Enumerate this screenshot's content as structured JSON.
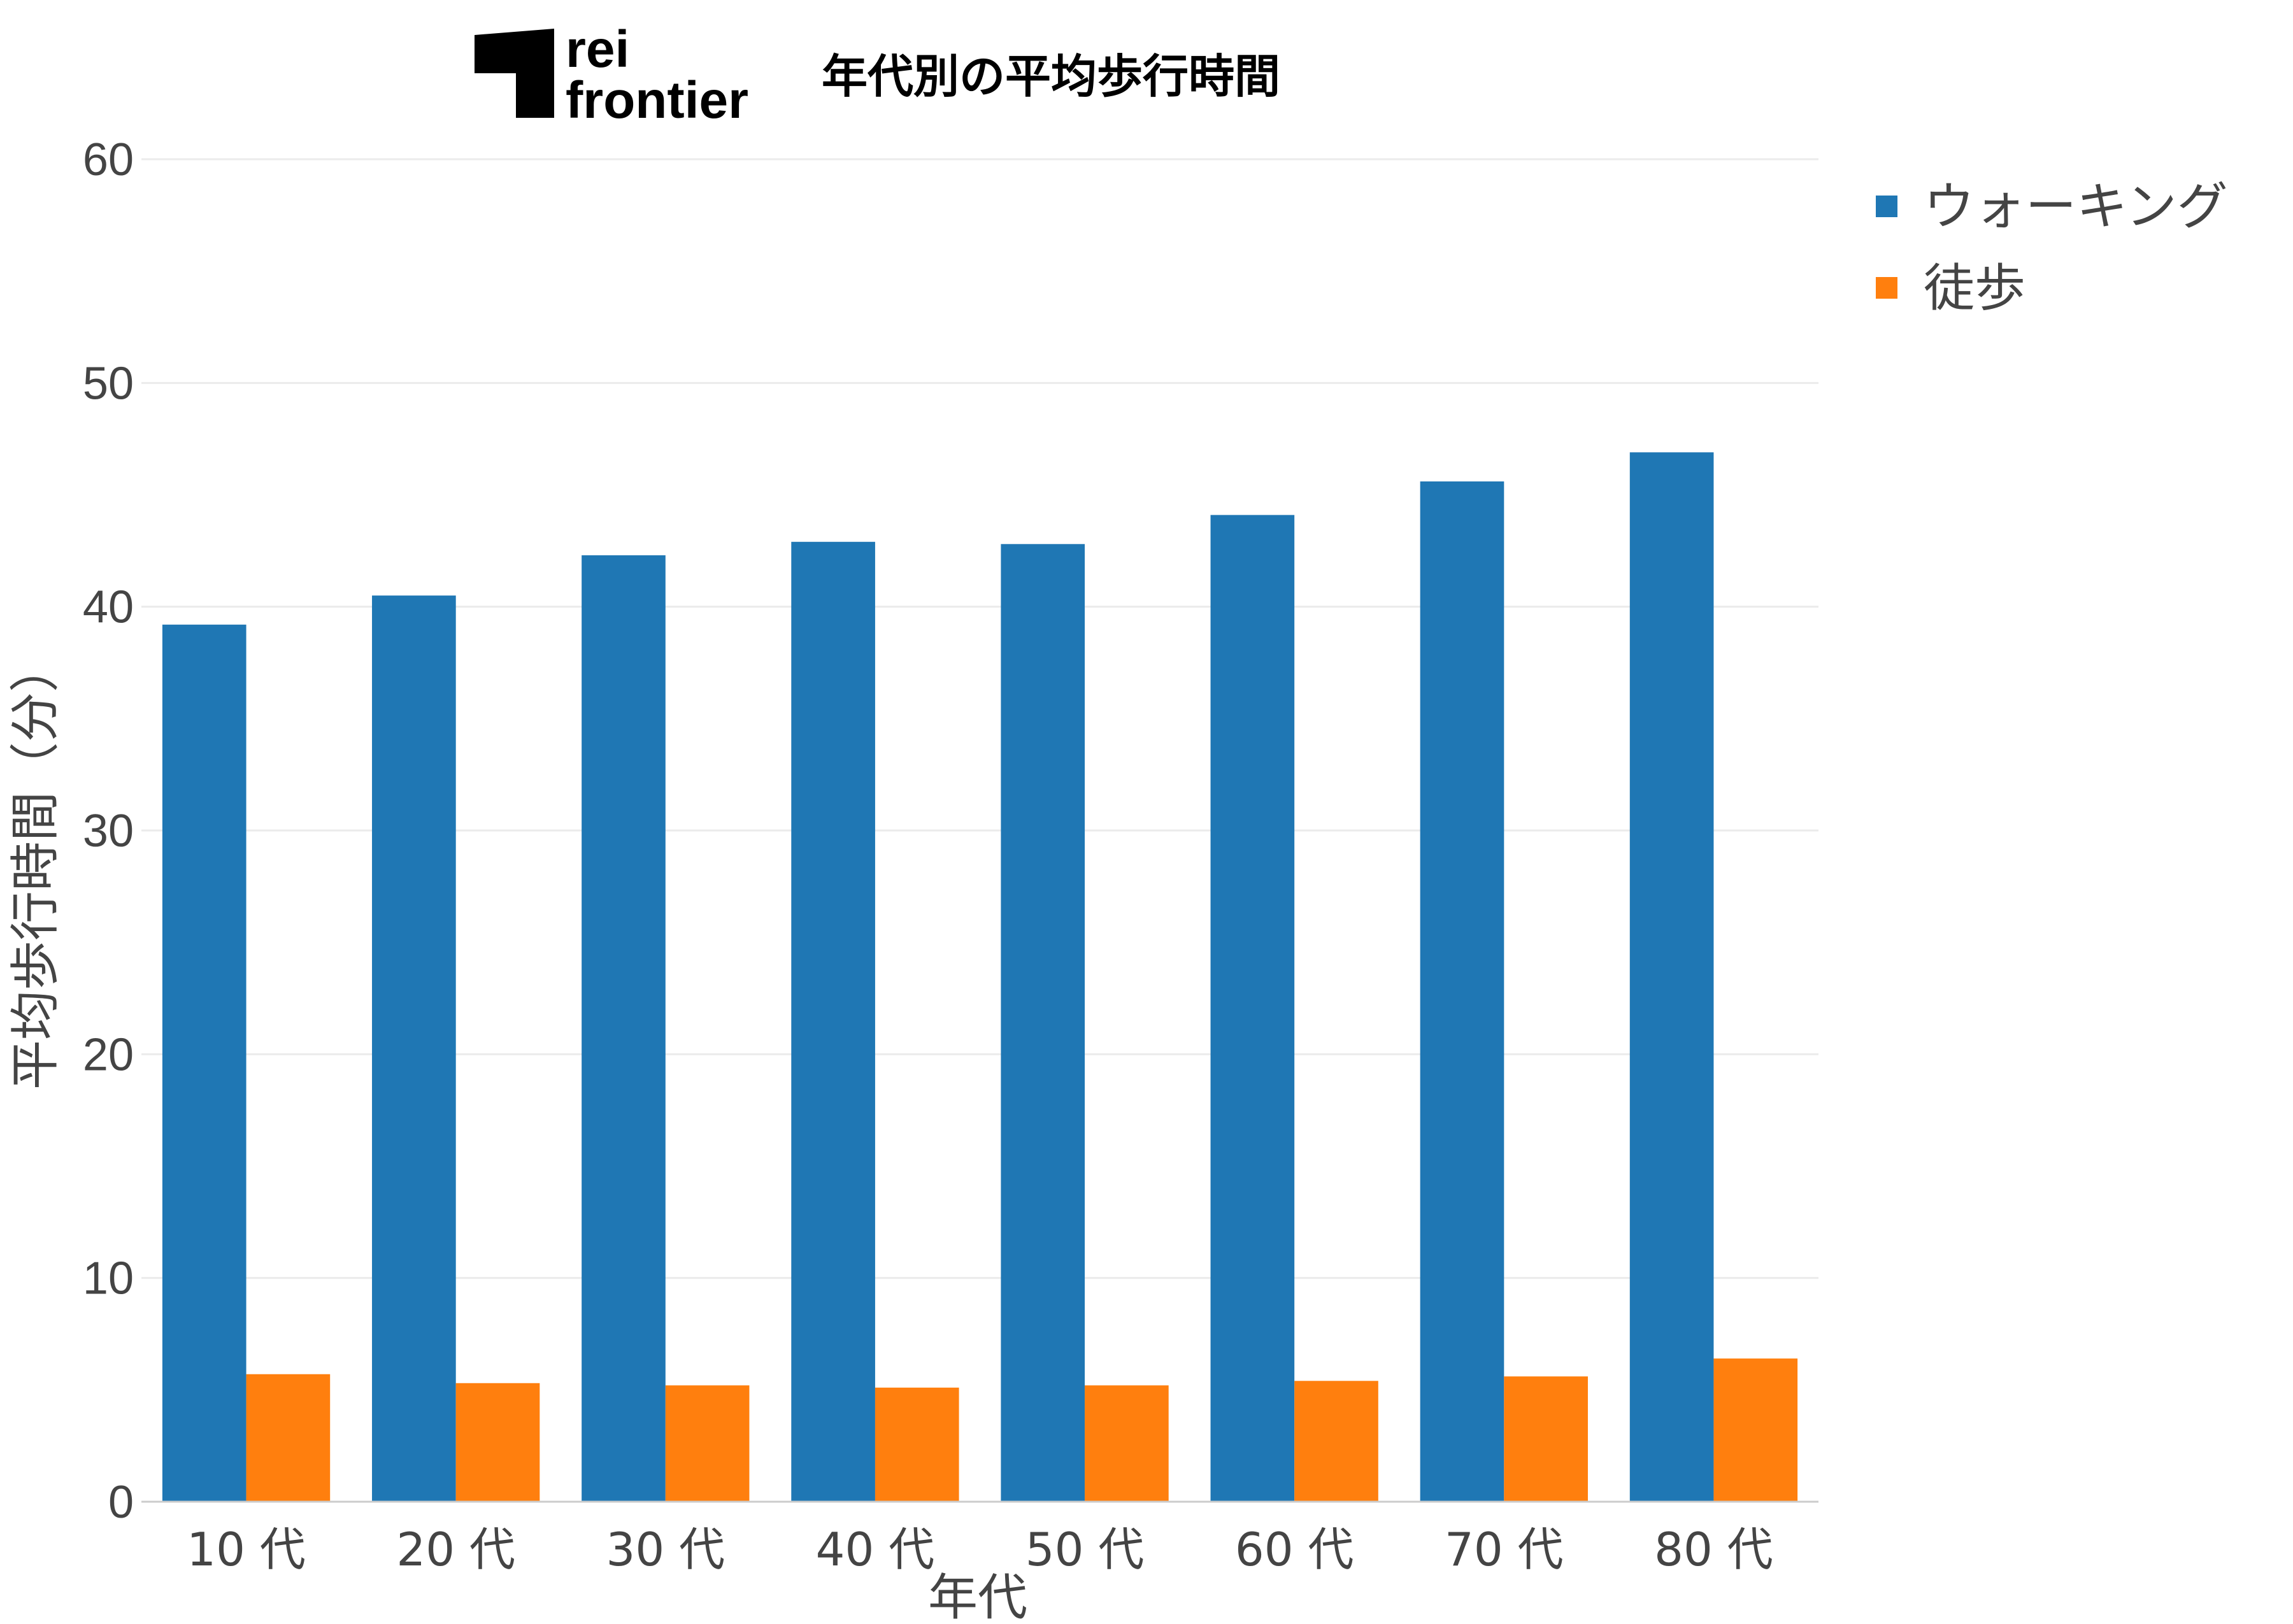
{
  "logo": {
    "line1": "rei",
    "line2": "frontier"
  },
  "chart_data": {
    "type": "bar",
    "title": "年代別の平均歩行時間",
    "xlabel": "年代",
    "ylabel": "平均歩行時間（分）",
    "categories": [
      "10 代",
      "20 代",
      "30 代",
      "40 代",
      "50 代",
      "60 代",
      "70 代",
      "80 代"
    ],
    "series": [
      {
        "name": "ウォーキング",
        "color": "#1f77b4",
        "values": [
          39.2,
          40.5,
          42.3,
          42.9,
          42.8,
          44.1,
          45.6,
          46.9
        ]
      },
      {
        "name": "徒歩",
        "color": "#ff7f0e",
        "values": [
          5.7,
          5.3,
          5.2,
          5.1,
          5.2,
          5.4,
          5.6,
          6.4
        ]
      }
    ],
    "ylim": [
      0,
      60
    ],
    "yticks": [
      0,
      10,
      20,
      30,
      40,
      50,
      60
    ],
    "grid": true,
    "legend": "top-right"
  }
}
